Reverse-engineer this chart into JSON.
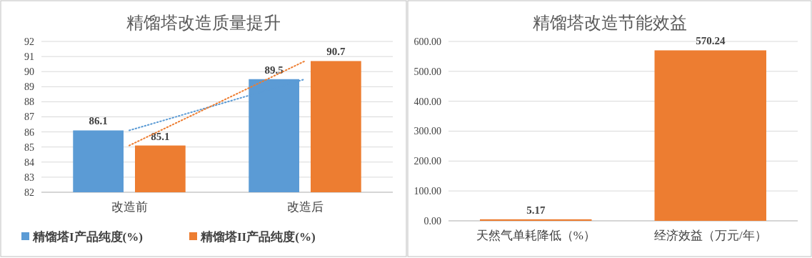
{
  "chart_data": [
    {
      "type": "bar",
      "title": "精馏塔改造质量提升",
      "categories": [
        "改造前",
        "改造后"
      ],
      "series": [
        {
          "name": "精馏塔I产品纯度(%)",
          "color": "#5b9bd5",
          "values": [
            86.1,
            89.5
          ]
        },
        {
          "name": "精馏塔II产品纯度(%)",
          "color": "#ed7d31",
          "values": [
            85.1,
            90.7
          ]
        },
        {
          "type": "line",
          "color": "#5b9bd5",
          "values": [
            86.1,
            89.5
          ],
          "line_style": "dotted",
          "value_labels": [
            null,
            null
          ]
        },
        {
          "type": "line",
          "color": "#ed7d31",
          "values": [
            85.1,
            90.7
          ],
          "line_style": "dotted",
          "value_labels": [
            null,
            null
          ]
        }
      ],
      "ylim": [
        82,
        92
      ],
      "yticks": [
        82,
        83,
        84,
        85,
        86,
        87,
        88,
        89,
        90,
        91,
        92
      ],
      "grid": "y",
      "legend": "bottom",
      "data_labels": true
    },
    {
      "type": "bar",
      "title": "精馏塔改造节能效益",
      "categories": [
        "天然气单耗降低（%）",
        "经济效益（万元/年）"
      ],
      "series": [
        {
          "color": "#ed7d31",
          "values": [
            5.17,
            570.24
          ]
        }
      ],
      "ylim": [
        0,
        600
      ],
      "yticks": [
        {
          "value": 0,
          "label": "0.00"
        },
        {
          "value": 100,
          "label": "100.00"
        },
        {
          "value": 200,
          "label": "200.00"
        },
        {
          "value": 300,
          "label": "300.00"
        },
        {
          "value": 400,
          "label": "400.00"
        },
        {
          "value": 500,
          "label": "500.00"
        },
        {
          "value": 600,
          "label": "600.00"
        }
      ],
      "grid": "y",
      "legend": false,
      "data_labels": true
    }
  ]
}
